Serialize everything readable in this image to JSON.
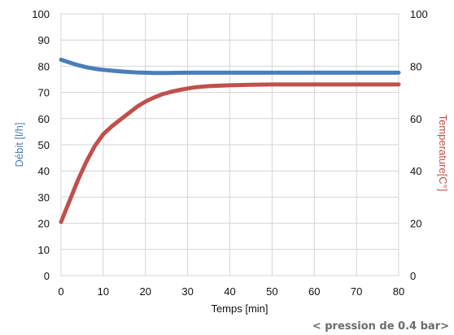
{
  "chart_data": {
    "type": "line",
    "xlabel": "Temps [min]",
    "ylabel_left": "Débit [l/h]",
    "ylabel_right": "Temperature[C°]",
    "note": "< pression de 0.4 bar>",
    "xlim": [
      0,
      80
    ],
    "ylim_left": [
      0,
      100
    ],
    "ylim_right": [
      0,
      100
    ],
    "x_ticks": [
      0,
      10,
      20,
      30,
      40,
      50,
      60,
      70,
      80
    ],
    "y_left_ticks": [
      0,
      10,
      20,
      30,
      40,
      50,
      60,
      70,
      80,
      90,
      100
    ],
    "y_right_ticks": [
      0,
      20,
      40,
      60,
      80,
      100
    ],
    "grid": true,
    "series": [
      {
        "axis": "left",
        "color": "#4a7ebb",
        "x": [
          0,
          2,
          4,
          6,
          8,
          10,
          12,
          14,
          16,
          18,
          20,
          22,
          25,
          30,
          40,
          50,
          60,
          70,
          80
        ],
        "values": [
          82.5,
          81.4,
          80.4,
          79.6,
          79.0,
          78.6,
          78.3,
          78.0,
          77.8,
          77.6,
          77.5,
          77.4,
          77.4,
          77.5,
          77.5,
          77.5,
          77.5,
          77.5,
          77.5
        ]
      },
      {
        "axis": "right",
        "color": "#c0504d",
        "x": [
          0,
          2,
          4,
          6,
          8,
          10,
          12,
          14,
          16,
          18,
          20,
          22,
          24,
          26,
          28,
          30,
          32,
          35,
          40,
          45,
          50,
          60,
          70,
          80
        ],
        "values": [
          20.5,
          28.5,
          36.5,
          43.5,
          49.5,
          54,
          57,
          59.5,
          62,
          64.5,
          66.5,
          68,
          69.3,
          70.2,
          70.9,
          71.5,
          72,
          72.4,
          72.7,
          72.9,
          73,
          73,
          73,
          73
        ]
      }
    ]
  }
}
